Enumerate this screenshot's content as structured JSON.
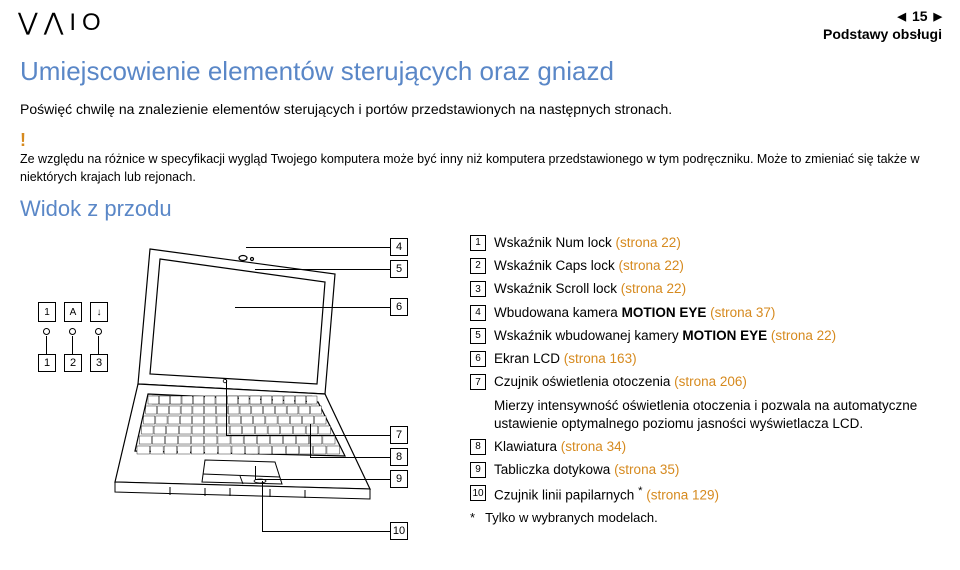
{
  "header": {
    "logo": "⋁⋀IO",
    "page_number": "15",
    "section": "Podstawy obsługi"
  },
  "title": "Umiejscowienie elementów sterujących oraz gniazd",
  "intro": "Poświęć chwilę na znalezienie elementów sterujących i portów przedstawionych na następnych stronach.",
  "note": "Ze względu na różnice w specyfikacji wygląd Twojego komputera może być inny niż komputera przedstawionego w tym podręczniku. Może to zmieniać się także w niektórych krajach lub rejonach.",
  "subtitle": "Widok z przodu",
  "icons": {
    "i1": "1",
    "iA": "A",
    "iDown": "↓"
  },
  "callouts": {
    "c1": "1",
    "c2": "2",
    "c3": "3",
    "c4": "4",
    "c5": "5",
    "c6": "6",
    "c7": "7",
    "c8": "8",
    "c9": "9",
    "c10": "10"
  },
  "legend": [
    {
      "n": "1",
      "text": "Wskaźnik Num lock ",
      "link": "(strona 22)"
    },
    {
      "n": "2",
      "text": "Wskaźnik Caps lock ",
      "link": "(strona 22)"
    },
    {
      "n": "3",
      "text": "Wskaźnik Scroll lock ",
      "link": "(strona 22)"
    },
    {
      "n": "4",
      "text_pre": "Wbudowana kamera ",
      "bold": "MOTION EYE",
      "text_post": " ",
      "link": "(strona 37)"
    },
    {
      "n": "5",
      "text_pre": "Wskaźnik wbudowanej kamery ",
      "bold": "MOTION EYE",
      "text_post": " ",
      "link": "(strona 22)"
    },
    {
      "n": "6",
      "text": "Ekran LCD ",
      "link": "(strona 163)"
    },
    {
      "n": "7",
      "text": "Czujnik oświetlenia otoczenia ",
      "link": "(strona 206)",
      "sub": "Mierzy intensywność oświetlenia otoczenia i pozwala na automatyczne ustawienie optymalnego poziomu jasności wyświetlacza LCD."
    },
    {
      "n": "8",
      "text": "Klawiatura ",
      "link": "(strona 34)"
    },
    {
      "n": "9",
      "text": "Tabliczka dotykowa ",
      "link": "(strona 35)"
    },
    {
      "n": "10",
      "text": "Czujnik linii papilarnych",
      "sup": "*",
      "text_post": " ",
      "link": "(strona 129)"
    }
  ],
  "footnote": {
    "mark": "*",
    "text": "Tylko w wybranych modelach."
  },
  "colors": {
    "heading": "#5a87c7",
    "accent": "#d68a1f",
    "text": "#000000"
  }
}
